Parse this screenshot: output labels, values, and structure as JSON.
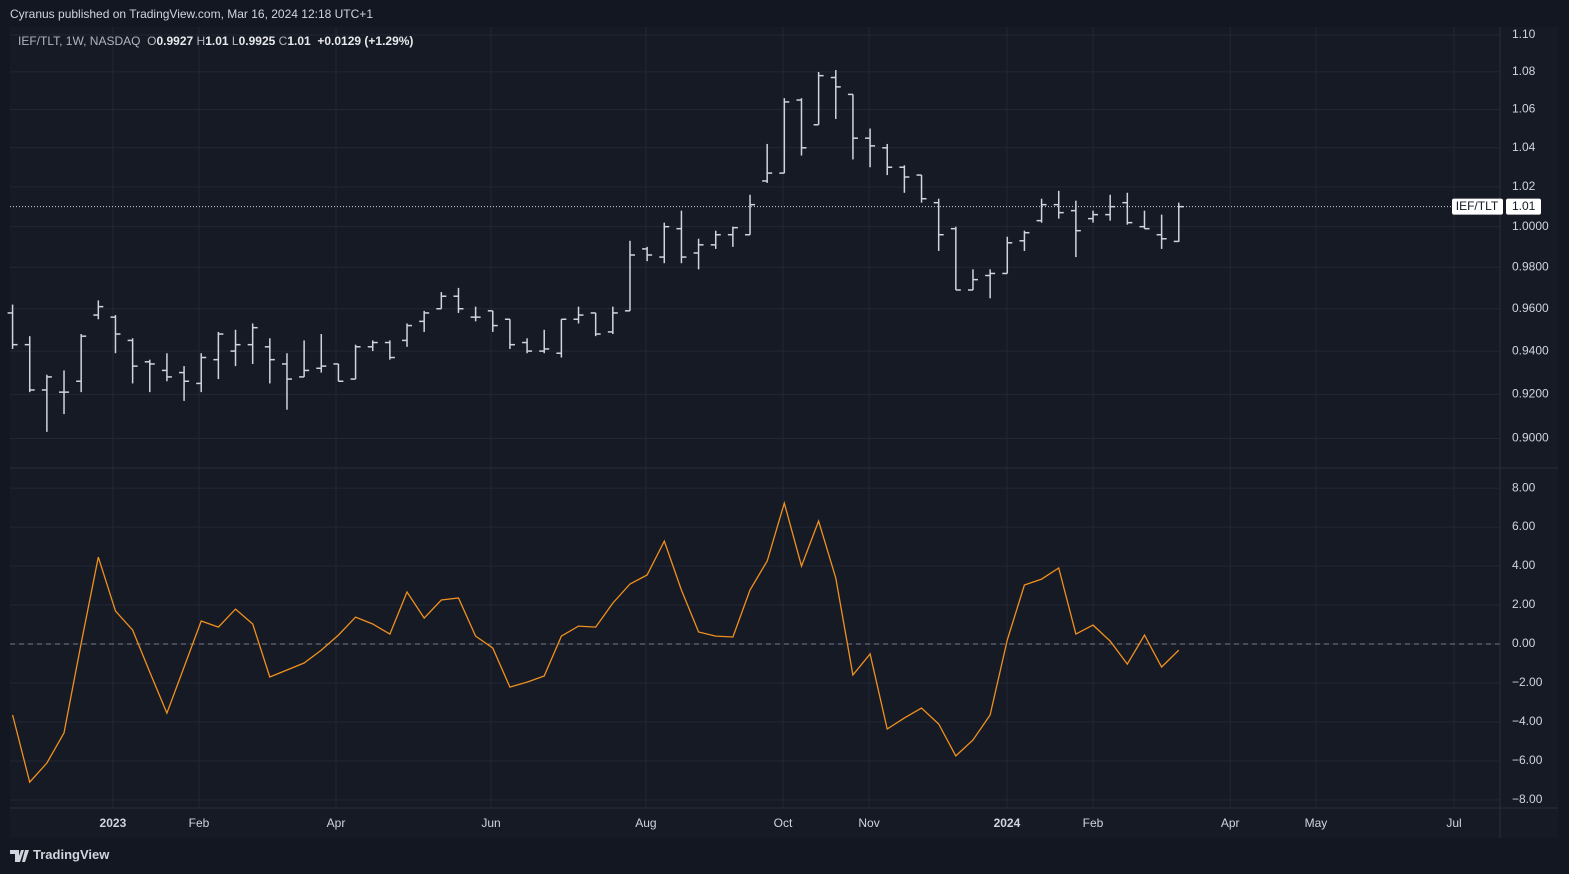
{
  "header": {
    "publisher": "Cyranus published on TradingView.com, Mar 16, 2024 12:18 UTC+1",
    "symbol": "IEF/TLT, 1W, NASDAQ",
    "ohlc": [
      {
        "key": "O",
        "value": "0.9927"
      },
      {
        "key": "H",
        "value": "1.01"
      },
      {
        "key": "L",
        "value": "0.9925"
      },
      {
        "key": "C",
        "value": "1.01"
      }
    ],
    "change": "+0.0129 (+1.29%)"
  },
  "footer": {
    "brand": "TradingView"
  },
  "chart_data": [
    {
      "type": "ohlc",
      "log_scale": true,
      "grid": true,
      "ylim": [
        0.8869,
        1.1044
      ],
      "yticks": [
        {
          "value": 1.1,
          "label": "1.10"
        },
        {
          "value": 1.08,
          "label": "1.08"
        },
        {
          "value": 1.06,
          "label": "1.06"
        },
        {
          "value": 1.04,
          "label": "1.04"
        },
        {
          "value": 1.02,
          "label": "1.02"
        },
        {
          "value": 1.0,
          "label": "1.0000"
        },
        {
          "value": 0.98,
          "label": "0.9800"
        },
        {
          "value": 0.96,
          "label": "0.9600"
        },
        {
          "value": 0.94,
          "label": "0.9400"
        },
        {
          "value": 0.92,
          "label": "0.9200"
        },
        {
          "value": 0.9,
          "label": "0.9000"
        }
      ],
      "last_value_label": "1.01",
      "series": [
        {
          "name": "IEF/TLT",
          "color": "#d1d4dc",
          "open": [
            0.958,
            0.943,
            0.922,
            0.921,
            0.926,
            0.957,
            0.956,
            0.945,
            0.935,
            0.931,
            0.93,
            0.925,
            0.936,
            0.94,
            0.943,
            0.942,
            0.934,
            0.928,
            0.932,
            0.934,
            0.927,
            0.942,
            0.944,
            0.945,
            0.954,
            0.96,
            0.966,
            0.956,
            0.959,
            0.955,
            0.944,
            0.94,
            0.939,
            0.955,
            0.958,
            0.949,
            0.959,
            0.989,
            0.985,
            0.999,
            0.987,
            0.991,
            0.996,
            0.996,
            1.023,
            1.027,
            1.065,
            1.052,
            1.077,
            1.068,
            1.045,
            1.04,
            1.03,
            1.026,
            1.012,
            0.999,
            0.969,
            0.976,
            0.977,
            0.993,
            1.003,
            1.011,
            1.008,
            1.004,
            1.006,
            1.012,
            1.0,
            0.996,
            0.9927
          ],
          "high": [
            0.962,
            0.947,
            0.929,
            0.931,
            0.948,
            0.964,
            0.957,
            0.946,
            0.936,
            0.939,
            0.933,
            0.939,
            0.949,
            0.95,
            0.953,
            0.946,
            0.939,
            0.945,
            0.948,
            0.934,
            0.943,
            0.945,
            0.945,
            0.953,
            0.959,
            0.968,
            0.97,
            0.961,
            0.959,
            0.955,
            0.946,
            0.95,
            0.955,
            0.961,
            0.958,
            0.961,
            0.993,
            0.99,
            1.002,
            1.008,
            0.994,
            0.998,
            1.0,
            1.016,
            1.042,
            1.066,
            1.066,
            1.08,
            1.081,
            1.068,
            1.05,
            1.042,
            1.031,
            1.026,
            1.014,
            1.0,
            0.979,
            0.979,
            0.995,
            0.998,
            1.014,
            1.018,
            1.013,
            1.008,
            1.016,
            1.017,
            1.008,
            1.006,
            1.012
          ],
          "low": [
            0.941,
            0.921,
            0.903,
            0.911,
            0.921,
            0.955,
            0.939,
            0.925,
            0.921,
            0.926,
            0.917,
            0.921,
            0.927,
            0.933,
            0.934,
            0.925,
            0.913,
            0.928,
            0.93,
            0.926,
            0.927,
            0.94,
            0.936,
            0.942,
            0.949,
            0.96,
            0.958,
            0.954,
            0.949,
            0.941,
            0.939,
            0.939,
            0.937,
            0.953,
            0.947,
            0.948,
            0.959,
            0.983,
            0.982,
            0.982,
            0.979,
            0.989,
            0.99,
            0.996,
            1.022,
            1.027,
            1.036,
            1.052,
            1.055,
            1.034,
            1.03,
            1.026,
            1.017,
            1.012,
            0.988,
            0.969,
            0.969,
            0.965,
            0.977,
            0.988,
            1.002,
            1.004,
            0.985,
            1.002,
            1.003,
            1.001,
            0.999,
            0.989,
            0.9925
          ],
          "close": [
            0.943,
            0.922,
            0.928,
            0.921,
            0.947,
            0.961,
            0.948,
            0.933,
            0.934,
            0.928,
            0.926,
            0.937,
            0.948,
            0.943,
            0.951,
            0.936,
            0.927,
            0.931,
            0.933,
            0.926,
            0.942,
            0.944,
            0.937,
            0.952,
            0.958,
            0.966,
            0.96,
            0.956,
            0.952,
            0.943,
            0.94,
            0.941,
            0.955,
            0.957,
            0.948,
            0.958,
            0.986,
            0.986,
            1.0,
            0.985,
            0.991,
            0.996,
            0.9995,
            1.011,
            1.027,
            1.064,
            1.04,
            1.078,
            1.072,
            1.045,
            1.041,
            1.03,
            1.025,
            1.014,
            0.996,
            0.969,
            0.974,
            0.977,
            0.992,
            0.997,
            1.011,
            1.007,
            0.998,
            1.006,
            1.01,
            1.002,
            0.999,
            0.994,
            1.01
          ]
        }
      ]
    },
    {
      "type": "line",
      "color": "#f0901e",
      "grid": true,
      "hline": 0,
      "ylim": [
        -8.41,
        9.03
      ],
      "yticks": [
        {
          "value": 8,
          "label": "8.00"
        },
        {
          "value": 6,
          "label": "6.00"
        },
        {
          "value": 4,
          "label": "4.00"
        },
        {
          "value": 2,
          "label": "2.00"
        },
        {
          "value": 0,
          "label": "0.00"
        },
        {
          "value": -2,
          "label": "−2.00"
        },
        {
          "value": -4,
          "label": "−4.00"
        },
        {
          "value": -6,
          "label": "−6.00"
        },
        {
          "value": -8,
          "label": "−8.00"
        }
      ],
      "xlim": [
        -0.15,
        86.73
      ],
      "xticks": [
        {
          "value": 5.85,
          "label": "2023"
        },
        {
          "value": 10.87,
          "label": "Feb"
        },
        {
          "value": 18.86,
          "label": "Apr"
        },
        {
          "value": 27.9,
          "label": "Jun"
        },
        {
          "value": 36.93,
          "label": "Aug"
        },
        {
          "value": 44.92,
          "label": "Oct"
        },
        {
          "value": 49.94,
          "label": "Nov"
        },
        {
          "value": 57.98,
          "label": "2024"
        },
        {
          "value": 63.0,
          "label": "Feb"
        },
        {
          "value": 71.0,
          "label": "Apr"
        },
        {
          "value": 76.0,
          "label": "May"
        },
        {
          "value": 84.05,
          "label": "Jul"
        }
      ],
      "values": [
        -3.64,
        -7.08,
        -6.1,
        -4.56,
        0.05,
        4.46,
        1.69,
        0.72,
        -1.44,
        -3.54,
        -1.18,
        1.18,
        0.87,
        1.79,
        1.03,
        -1.69,
        -1.33,
        -0.97,
        -0.31,
        0.46,
        1.38,
        1.03,
        0.51,
        2.67,
        1.33,
        2.26,
        2.36,
        0.41,
        -0.21,
        -2.21,
        -1.95,
        -1.64,
        0.41,
        0.92,
        0.87,
        2.1,
        3.08,
        3.54,
        5.28,
        2.77,
        0.62,
        0.41,
        0.36,
        2.77,
        4.26,
        7.23,
        4.0,
        6.31,
        3.38,
        -1.59,
        -0.51,
        -4.36,
        -3.79,
        -3.28,
        -4.1,
        -5.74,
        -4.92,
        -3.64,
        0.21,
        3.03,
        3.33,
        3.9,
        0.51,
        0.97,
        0.15,
        -1.03,
        0.46,
        -1.18,
        -0.31
      ]
    }
  ]
}
